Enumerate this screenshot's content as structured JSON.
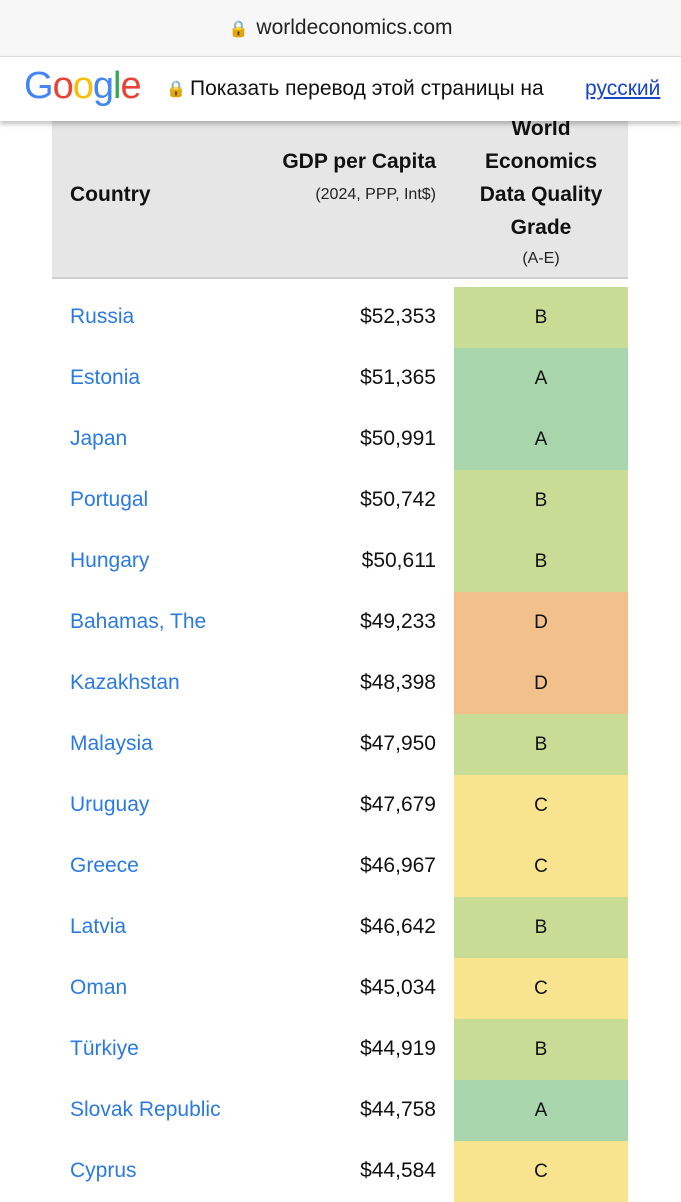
{
  "browser": {
    "url": "worldeconomics.com"
  },
  "translate_bar": {
    "logo": "Google",
    "message": "Показать перевод этой страницы на",
    "language": "русский"
  },
  "table": {
    "headers": {
      "country": "Country",
      "gdp": "GDP per Capita",
      "gdp_sub": "(2024, PPP, Int$)",
      "grade": "World Economics Data Quality Grade",
      "grade_sub": "(A-E)"
    },
    "rows": [
      [
        "Russia",
        "$52,353",
        "B"
      ],
      [
        "Estonia",
        "$51,365",
        "A"
      ],
      [
        "Japan",
        "$50,991",
        "A"
      ],
      [
        "Portugal",
        "$50,742",
        "B"
      ],
      [
        "Hungary",
        "$50,611",
        "B"
      ],
      [
        "Bahamas, The",
        "$49,233",
        "D"
      ],
      [
        "Kazakhstan",
        "$48,398",
        "D"
      ],
      [
        "Malaysia",
        "$47,950",
        "B"
      ],
      [
        "Uruguay",
        "$47,679",
        "C"
      ],
      [
        "Greece",
        "$46,967",
        "C"
      ],
      [
        "Latvia",
        "$46,642",
        "B"
      ],
      [
        "Oman",
        "$45,034",
        "C"
      ],
      [
        "Türkiye",
        "$44,919",
        "B"
      ],
      [
        "Slovak Republic",
        "$44,758",
        "A"
      ],
      [
        "Cyprus",
        "$44,584",
        "C"
      ]
    ]
  }
}
